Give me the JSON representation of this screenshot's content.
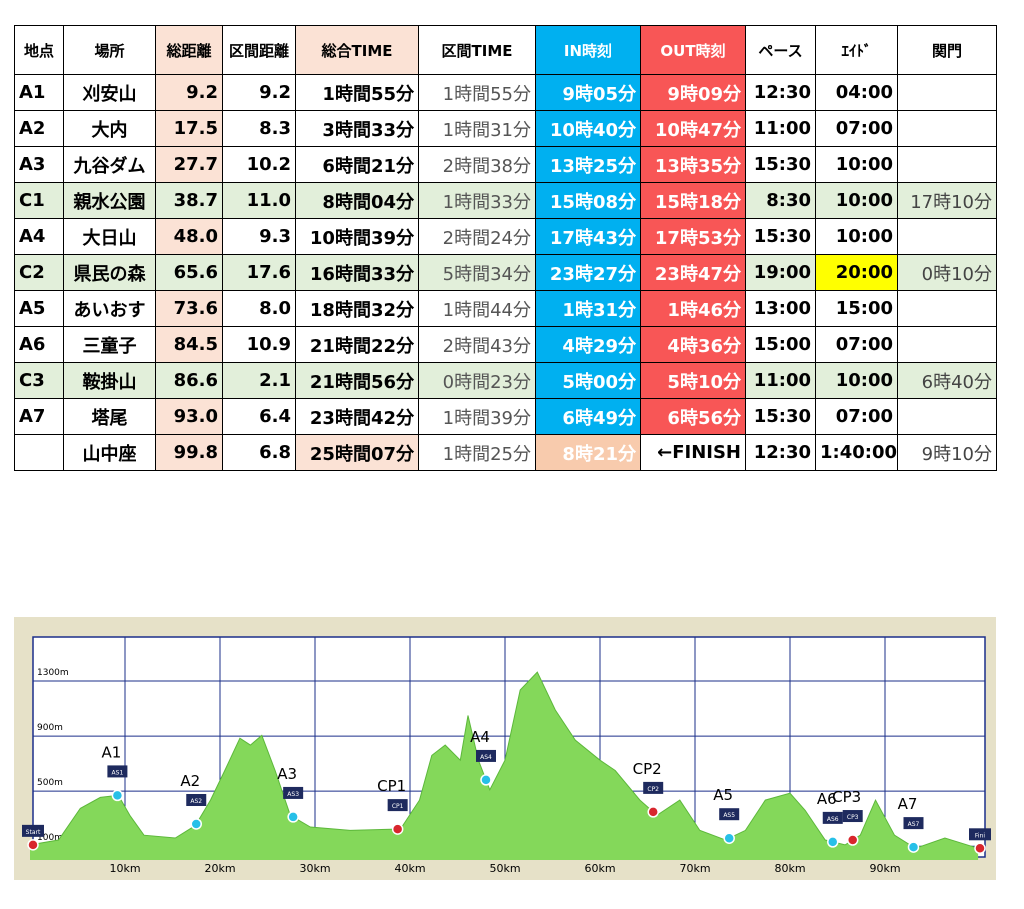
{
  "table": {
    "headers": [
      "地点",
      "場所",
      "総距離",
      "区間距離",
      "総合TIME",
      "区間TIME",
      "IN時刻",
      "OUT時刻",
      "ペース",
      "ｴｲﾄﾞ",
      "関門"
    ],
    "rows": [
      [
        "A1",
        "刈安山",
        "9.2",
        "9.2",
        "1時間55分",
        "1時間55分",
        "9時05分",
        "9時09分",
        "12:30",
        "04:00",
        null
      ],
      [
        "A2",
        "大内",
        "17.5",
        "8.3",
        "3時間33分",
        "1時間31分",
        "10時40分",
        "10時47分",
        "11:00",
        "07:00",
        null
      ],
      [
        "A3",
        "九谷ダム",
        "27.7",
        "10.2",
        "6時間21分",
        "2時間38分",
        "13時25分",
        "13時35分",
        "15:30",
        "10:00",
        null
      ],
      [
        "C1",
        "親水公園",
        "38.7",
        "11.0",
        "8時間04分",
        "1時間33分",
        "15時08分",
        "15時18分",
        "8:30",
        "10:00",
        "17時10分"
      ],
      [
        "A4",
        "大日山",
        "48.0",
        "9.3",
        "10時間39分",
        "2時間24分",
        "17時43分",
        "17時53分",
        "15:30",
        "10:00",
        null
      ],
      [
        "C2",
        "県民の森",
        "65.6",
        "17.6",
        "16時間33分",
        "5時間34分",
        "23時27分",
        "23時47分",
        "19:00",
        "20:00",
        "0時10分"
      ],
      [
        "A5",
        "あいおす",
        "73.6",
        "8.0",
        "18時間32分",
        "1時間44分",
        "1時31分",
        "1時46分",
        "13:00",
        "15:00",
        null
      ],
      [
        "A6",
        "三童子",
        "84.5",
        "10.9",
        "21時間22分",
        "2時間43分",
        "4時29分",
        "4時36分",
        "15:00",
        "07:00",
        null
      ],
      [
        "C3",
        "鞍掛山",
        "86.6",
        "2.1",
        "21時間56分",
        "0時間23分",
        "5時00分",
        "5時10分",
        "11:00",
        "10:00",
        "6時40分"
      ],
      [
        "A7",
        "塔尾",
        "93.0",
        "6.4",
        "23時間42分",
        "1時間39分",
        "6時49分",
        "6時56分",
        "15:30",
        "07:00",
        null
      ],
      [
        null,
        "山中座",
        "99.8",
        "6.8",
        "25時間07分",
        "1時間25分",
        "8時21分",
        "←FINISH",
        "12:30",
        "1:40:00",
        "9時10分"
      ]
    ],
    "checkpoint_row_color": "#e2efda",
    "highlight": {
      "row": 5,
      "col": 9,
      "color": "#ffff00"
    }
  },
  "profile": {
    "type": "area",
    "color": "#84d85a",
    "xlim": [
      0,
      100
    ],
    "ylim": [
      0,
      1620
    ],
    "xticks": [
      {
        "value": 10,
        "label": "10km"
      },
      {
        "value": 20,
        "label": "20km"
      },
      {
        "value": 30,
        "label": "30km"
      },
      {
        "value": 40,
        "label": "40km"
      },
      {
        "value": 50,
        "label": "50km"
      },
      {
        "value": 60,
        "label": "60km"
      },
      {
        "value": 70,
        "label": "70km"
      },
      {
        "value": 80,
        "label": "80km"
      },
      {
        "value": 90,
        "label": "90km"
      }
    ],
    "yticks": [
      {
        "value": 100,
        "label": "100m"
      },
      {
        "value": 500,
        "label": "500m"
      },
      {
        "value": 900,
        "label": "900m"
      },
      {
        "value": 1300,
        "label": "1300m"
      }
    ],
    "x": [
      0,
      3,
      5.3,
      7.4,
      9.3,
      10.5,
      12,
      15.3,
      17.4,
      19,
      20.5,
      22.1,
      23.2,
      24.4,
      25.8,
      27.4,
      29.5,
      33.7,
      39,
      41,
      42.3,
      43.7,
      45.3,
      46.1,
      47.2,
      48.4,
      50,
      51.6,
      53.4,
      55.3,
      57.4,
      60,
      61.6,
      64.2,
      66,
      68.4,
      70.5,
      73.2,
      75.3,
      77.4,
      80,
      81.6,
      83.7,
      85.8,
      87.4,
      89,
      91,
      93.2,
      96.3,
      99.8
    ],
    "elevation": [
      110,
      145,
      375,
      455,
      470,
      325,
      180,
      160,
      250,
      435,
      650,
      885,
      835,
      905,
      650,
      325,
      240,
      215,
      225,
      435,
      760,
      835,
      725,
      1050,
      725,
      510,
      725,
      1235,
      1365,
      1090,
      870,
      725,
      650,
      435,
      325,
      435,
      215,
      145,
      215,
      435,
      485,
      360,
      145,
      110,
      180,
      435,
      180,
      85,
      160,
      85
    ],
    "markers": [
      {
        "badge": "Start",
        "km": 0
      },
      {
        "label": "A1",
        "badge": "AS1",
        "km": 9.2
      },
      {
        "label": "A2",
        "badge": "AS2",
        "km": 17.5
      },
      {
        "label": "A3",
        "badge": "AS3",
        "km": 27.7
      },
      {
        "label": "CP1",
        "badge": "CP1",
        "km": 38.7
      },
      {
        "label": "A4",
        "badge": "AS4",
        "km": 48.0
      },
      {
        "label": "CP2",
        "badge": "CP2",
        "km": 65.6
      },
      {
        "label": "A5",
        "badge": "AS5",
        "km": 73.6
      },
      {
        "label": "A6",
        "badge": "AS6",
        "km": 84.5
      },
      {
        "label": "CP3",
        "badge": "CP3",
        "km": 86.6
      },
      {
        "label": "A7",
        "badge": "AS7",
        "km": 93.0
      },
      {
        "badge": "Fini",
        "km": 100
      }
    ]
  }
}
